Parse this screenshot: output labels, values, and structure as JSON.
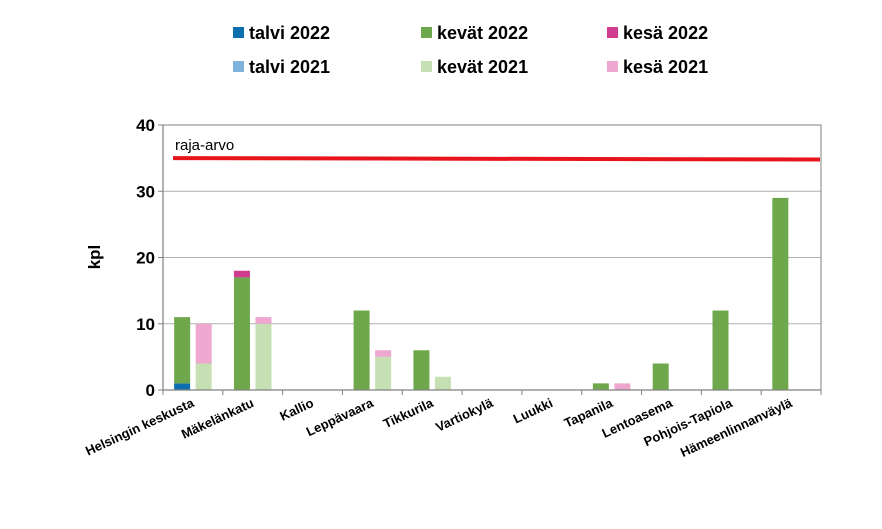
{
  "chart_data": {
    "type": "bar",
    "stacked": true,
    "ylabel": "kpl",
    "ylim": [
      0,
      40
    ],
    "yticks": [
      "0",
      "10",
      "20",
      "30",
      "40"
    ],
    "categories": [
      "Helsingin keskusta",
      "Mäkelänkatu",
      "Kallio",
      "Leppävaara",
      "Tikkurila",
      "Vartiokylä",
      "Luukki",
      "Tapanila",
      "Lentoasema",
      "Pohjois-Tapiola",
      "Hämeenlinnanväylä"
    ],
    "series": [
      {
        "name": "talvi 2022",
        "year": "2022",
        "stack_order": 0,
        "color": "#0e6fb0",
        "values": [
          1,
          0,
          0,
          0,
          0,
          0,
          0,
          0,
          0,
          0,
          0
        ]
      },
      {
        "name": "kevät 2022",
        "year": "2022",
        "stack_order": 1,
        "color": "#6fa84c",
        "values": [
          10,
          17,
          0,
          12,
          6,
          0,
          0,
          1,
          4,
          12,
          29
        ]
      },
      {
        "name": "kesä 2022",
        "year": "2022",
        "stack_order": 2,
        "color": "#d03d8e",
        "values": [
          0,
          1,
          0,
          0,
          0,
          0,
          0,
          0,
          0,
          0,
          0
        ]
      },
      {
        "name": "talvi 2021",
        "year": "2021",
        "stack_order": 0,
        "color": "#7fb3dc",
        "values": [
          0,
          0,
          0,
          0,
          0,
          0,
          0,
          0,
          0,
          0,
          0
        ]
      },
      {
        "name": "kevät 2021",
        "year": "2021",
        "stack_order": 1,
        "color": "#c6e0b4",
        "values": [
          4,
          10,
          0,
          5,
          2,
          0,
          0,
          0,
          0,
          0,
          0
        ]
      },
      {
        "name": "kesä 2021",
        "year": "2021",
        "stack_order": 2,
        "color": "#eea7cf",
        "values": [
          6,
          1,
          0,
          1,
          0,
          0,
          0,
          1,
          0,
          0,
          0
        ]
      }
    ],
    "legend": {
      "position": "top",
      "rows": [
        [
          "talvi 2022",
          "kevät 2022",
          "kesä 2022"
        ],
        [
          "talvi 2021",
          "kevät 2021",
          "kesä 2021"
        ]
      ]
    },
    "reference_line": {
      "label": "raja-arvo",
      "y_start": 35,
      "y_end": 34.8,
      "color": "#e8141b"
    },
    "grid": {
      "horizontal": true,
      "vertical": false
    },
    "axis_color": "#808080",
    "grid_color": "#b0b0b0"
  }
}
